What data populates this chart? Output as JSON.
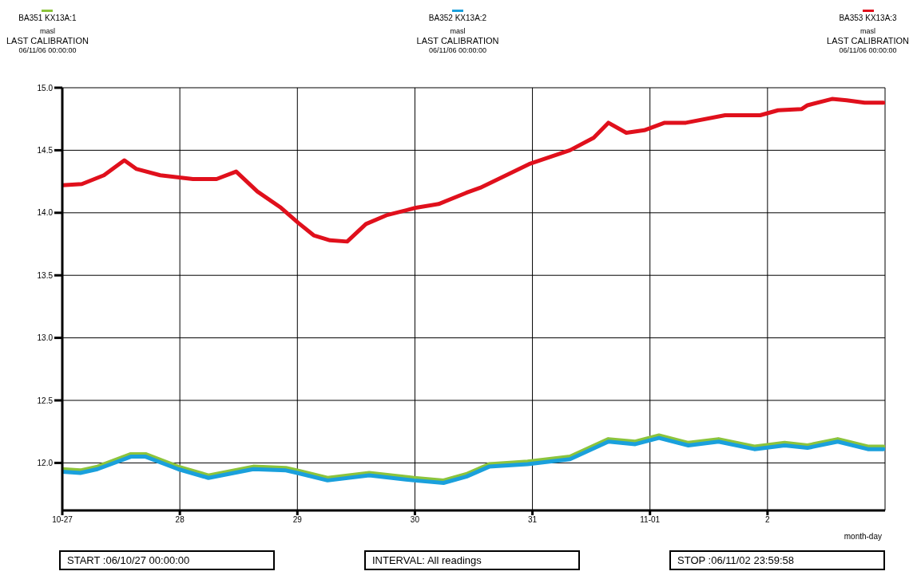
{
  "chart_data": {
    "type": "line",
    "xlabel": "month-day",
    "legend": "top",
    "grid": true,
    "xlim": [
      "--10-27T00:00",
      "--11-03T00:00"
    ],
    "xticks": [
      {
        "value": "--10-27",
        "label": "10-27"
      },
      {
        "value": "--10-28",
        "label": "28"
      },
      {
        "value": "--10-29",
        "label": "29"
      },
      {
        "value": "--10-30",
        "label": "30"
      },
      {
        "value": "--10-31",
        "label": "31"
      },
      {
        "value": "--11-01",
        "label": "11-01"
      },
      {
        "value": "--11-02",
        "label": "2"
      }
    ],
    "ylim": [
      11.62,
      15.0
    ],
    "yticks": [
      {
        "value": 12,
        "label": "12.0"
      },
      {
        "value": 12.5,
        "label": "12.5"
      },
      {
        "value": 13,
        "label": "13.0"
      },
      {
        "value": 13.5,
        "label": "13.5"
      },
      {
        "value": 14,
        "label": "14.0"
      },
      {
        "value": 14.5,
        "label": "14.5"
      },
      {
        "value": 15,
        "label": "15.0"
      }
    ],
    "annotations": [
      "masl",
      "LAST CALIBRATION",
      "06/11/06 00:00:00",
      "masl",
      "LAST CALIBRATION",
      "06/11/06 00:00:00",
      "masl",
      "LAST CALIBRATION",
      "06/11/06 00:00:00",
      "START :06/10/27 00:00:00",
      "INTERVAL: All readings",
      "STOP :06/11/02 23:59:58"
    ],
    "series": [
      {
        "name": "BA351 KX13A:1",
        "color": "#8cc43c",
        "x": [
          "--10-27T00:00",
          "--10-27T03:40",
          "--10-27T07:10",
          "--10-27T14:00",
          "--10-27T17:00",
          "--10-27T23:40",
          "--10-28T05:50",
          "--10-28T15:00",
          "--10-28T21:40",
          "--10-29T00:00",
          "--10-29T06:10",
          "--10-29T14:40",
          "--10-29T23:50",
          "--10-30T05:50",
          "--10-30T10:30",
          "--10-30T15:10",
          "--10-30T23:00",
          "--10-31T07:40",
          "--10-31T15:30",
          "--10-31T21:00",
          "--11-01T01:50",
          "--11-01T07:50",
          "--11-01T14:00",
          "--11-01T21:20",
          "--11-02T03:30",
          "--11-02T08:10",
          "--11-02T14:20",
          "--11-02T20:30",
          "--11-02T23:40"
        ],
        "values": [
          11.95,
          11.94,
          11.97,
          12.07,
          12.07,
          11.97,
          11.9,
          11.97,
          11.96,
          11.94,
          11.88,
          11.92,
          11.88,
          11.86,
          11.91,
          11.99,
          12.01,
          12.05,
          12.19,
          12.17,
          12.22,
          12.16,
          12.19,
          12.13,
          12.16,
          12.14,
          12.19,
          12.13,
          12.13
        ]
      },
      {
        "name": "BA352 KX13A:2",
        "color": "#1aa0dc",
        "x": [
          "--10-27T00:00",
          "--10-27T03:40",
          "--10-27T07:10",
          "--10-27T14:00",
          "--10-27T17:00",
          "--10-27T23:40",
          "--10-28T05:50",
          "--10-28T15:00",
          "--10-28T21:40",
          "--10-29T00:00",
          "--10-29T06:10",
          "--10-29T14:40",
          "--10-29T23:50",
          "--10-30T05:50",
          "--10-30T10:30",
          "--10-30T15:10",
          "--10-30T23:00",
          "--10-31T07:40",
          "--10-31T15:30",
          "--10-31T21:00",
          "--11-01T01:50",
          "--11-01T07:50",
          "--11-01T14:00",
          "--11-01T21:20",
          "--11-02T03:30",
          "--11-02T08:10",
          "--11-02T14:20",
          "--11-02T20:30",
          "--11-02T23:40"
        ],
        "values": [
          11.93,
          11.92,
          11.95,
          12.05,
          12.05,
          11.95,
          11.88,
          11.95,
          11.94,
          11.92,
          11.86,
          11.9,
          11.86,
          11.84,
          11.89,
          11.97,
          11.99,
          12.03,
          12.17,
          12.15,
          12.2,
          12.14,
          12.17,
          12.11,
          12.14,
          12.12,
          12.17,
          12.11,
          12.11
        ]
      },
      {
        "name": "BA353 KX13A:3",
        "color": "#e0101c",
        "x": [
          "--10-27T00:00",
          "--10-27T04:00",
          "--10-27T08:30",
          "--10-27T12:40",
          "--10-27T15:10",
          "--10-27T20:00",
          "--10-28T02:40",
          "--10-28T07:30",
          "--10-28T11:30",
          "--10-28T15:50",
          "--10-28T20:40",
          "--10-29T00:10",
          "--10-29T03:20",
          "--10-29T06:40",
          "--10-29T10:10",
          "--10-29T14:00",
          "--10-29T18:10",
          "--10-30T00:10",
          "--10-30T04:50",
          "--10-30T10:30",
          "--10-30T13:20",
          "--10-30T23:20",
          "--10-31T07:40",
          "--10-31T12:30",
          "--10-31T15:30",
          "--10-31T19:10",
          "--10-31T22:50",
          "--11-01T03:00",
          "--11-01T07:20",
          "--11-01T15:20",
          "--11-01T22:30",
          "--11-02T02:10",
          "--11-02T07:00",
          "--11-02T08:10",
          "--11-02T13:10",
          "--11-02T16:10",
          "--11-02T19:50",
          "--11-02T23:40"
        ],
        "values": [
          14.22,
          14.23,
          14.3,
          14.42,
          14.35,
          14.3,
          14.27,
          14.27,
          14.33,
          14.17,
          14.04,
          13.92,
          13.82,
          13.78,
          13.77,
          13.91,
          13.98,
          14.04,
          14.07,
          14.16,
          14.2,
          14.39,
          14.5,
          14.6,
          14.72,
          14.64,
          14.66,
          14.72,
          14.72,
          14.78,
          14.78,
          14.82,
          14.83,
          14.86,
          14.91,
          14.9,
          14.88,
          14.88
        ]
      }
    ]
  }
}
